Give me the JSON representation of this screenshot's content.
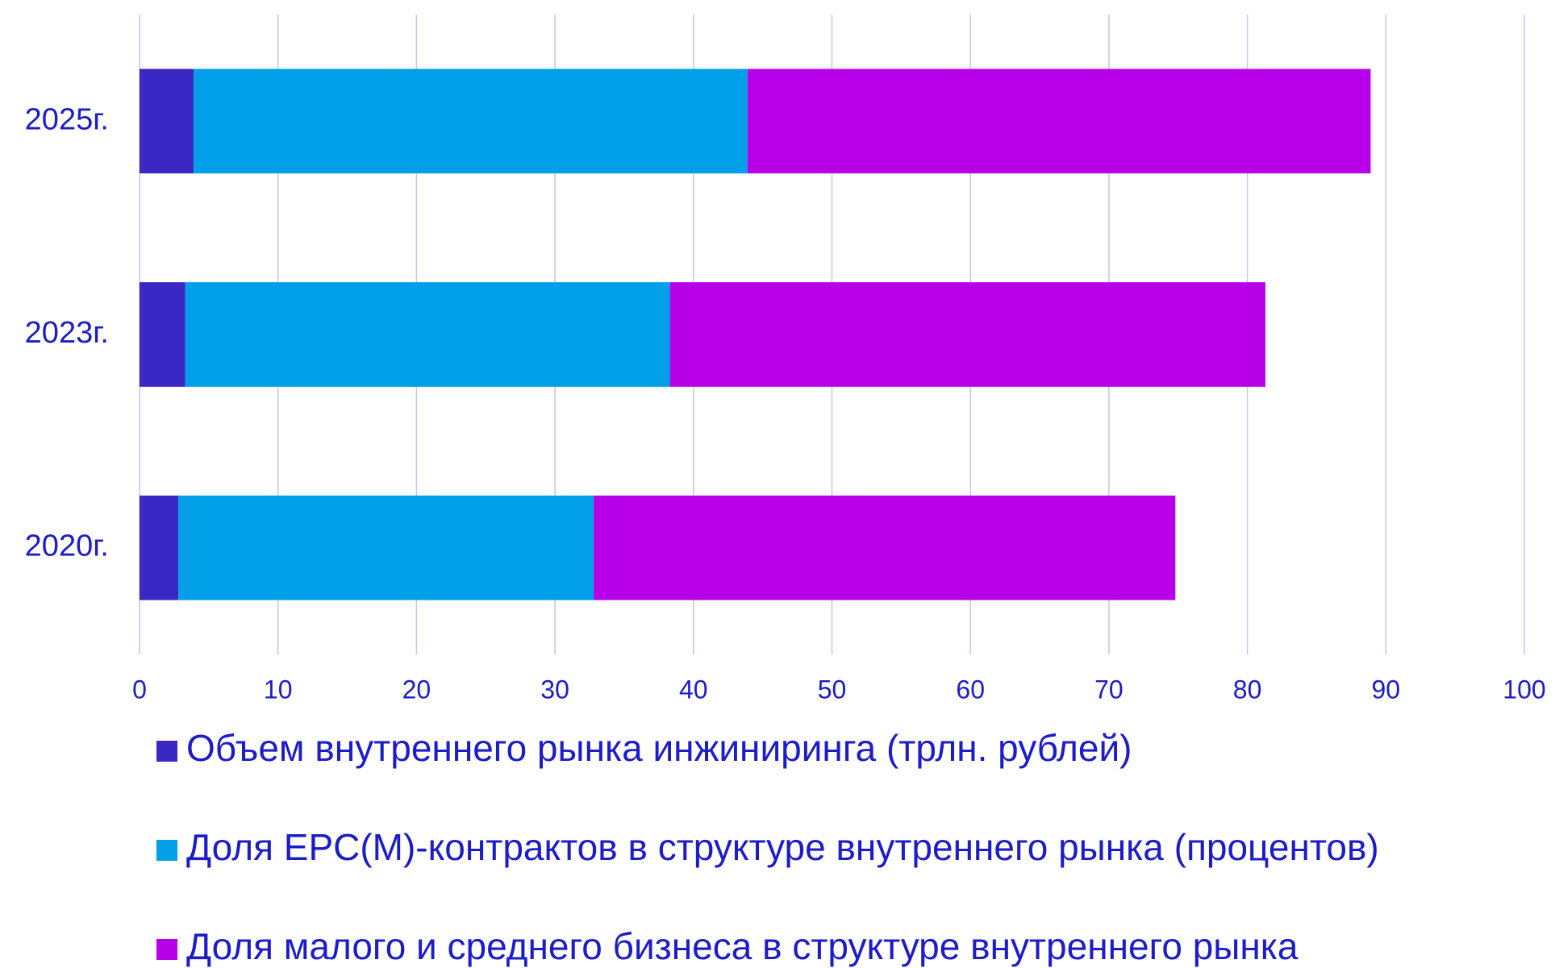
{
  "chart_data": {
    "type": "stacked-bar-horizontal",
    "categories": [
      "2020г.",
      "2023г.",
      "2025г."
    ],
    "series": [
      {
        "name": "Объем внутреннего рынка инжиниринга (трлн. рублей)",
        "color": "#3a27c4",
        "values": [
          2.8,
          3.3,
          3.9
        ]
      },
      {
        "name": "Доля EPC(M)-контрактов в структуре внутреннего рынка (процентов)",
        "color": "#009fe8",
        "values": [
          30,
          35,
          40
        ]
      },
      {
        "name": "Доля малого и среднего бизнеса в структуре внутреннего рынка",
        "color": "#b800e8",
        "values": [
          42,
          43,
          45
        ]
      }
    ],
    "xlim": [
      0,
      100
    ],
    "xticks": [
      0,
      10,
      20,
      30,
      40,
      50,
      60,
      70,
      80,
      90,
      100
    ],
    "grid": true,
    "legend": "bottom"
  }
}
